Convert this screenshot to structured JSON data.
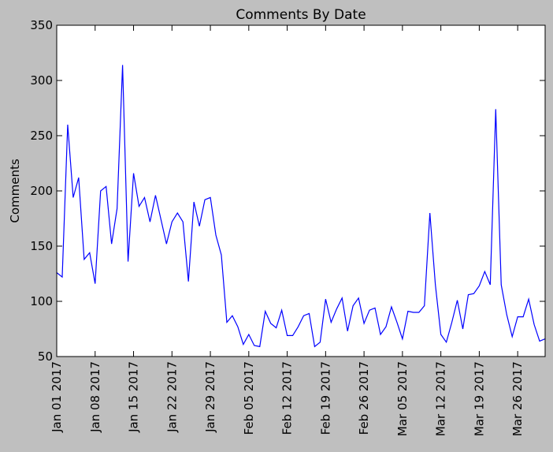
{
  "chart_data": {
    "type": "line",
    "title": "Comments By Date",
    "y_label": "Comments",
    "x": [
      "2017-01-01",
      "2017-01-02",
      "2017-01-03",
      "2017-01-04",
      "2017-01-05",
      "2017-01-06",
      "2017-01-07",
      "2017-01-08",
      "2017-01-09",
      "2017-01-10",
      "2017-01-11",
      "2017-01-12",
      "2017-01-13",
      "2017-01-14",
      "2017-01-15",
      "2017-01-16",
      "2017-01-17",
      "2017-01-18",
      "2017-01-19",
      "2017-01-20",
      "2017-01-21",
      "2017-01-22",
      "2017-01-23",
      "2017-01-24",
      "2017-01-25",
      "2017-01-26",
      "2017-01-27",
      "2017-01-28",
      "2017-01-29",
      "2017-01-30",
      "2017-01-31",
      "2017-02-01",
      "2017-02-02",
      "2017-02-03",
      "2017-02-04",
      "2017-02-05",
      "2017-02-06",
      "2017-02-07",
      "2017-02-08",
      "2017-02-09",
      "2017-02-10",
      "2017-02-11",
      "2017-02-12",
      "2017-02-13",
      "2017-02-14",
      "2017-02-15",
      "2017-02-16",
      "2017-02-17",
      "2017-02-18",
      "2017-02-19",
      "2017-02-20",
      "2017-02-21",
      "2017-02-22",
      "2017-02-23",
      "2017-02-24",
      "2017-02-25",
      "2017-02-26",
      "2017-02-27",
      "2017-02-28",
      "2017-03-01",
      "2017-03-02",
      "2017-03-03",
      "2017-03-04",
      "2017-03-05",
      "2017-03-06",
      "2017-03-07",
      "2017-03-08",
      "2017-03-09",
      "2017-03-10",
      "2017-03-11",
      "2017-03-12",
      "2017-03-13",
      "2017-03-14",
      "2017-03-15",
      "2017-03-16",
      "2017-03-17",
      "2017-03-18",
      "2017-03-19",
      "2017-03-20",
      "2017-03-21",
      "2017-03-22",
      "2017-03-23",
      "2017-03-24",
      "2017-03-25",
      "2017-03-26",
      "2017-03-27",
      "2017-03-28",
      "2017-03-29",
      "2017-03-30",
      "2017-03-31"
    ],
    "series": [
      {
        "color": "#0000ff",
        "values": [
          126,
          122,
          260,
          194,
          212,
          138,
          144,
          116,
          200,
          204,
          152,
          184,
          314,
          136,
          216,
          186,
          194,
          172,
          196,
          174,
          152,
          172,
          180,
          172,
          118,
          190,
          168,
          192,
          194,
          160,
          142,
          81,
          87,
          77,
          61,
          70,
          60,
          59,
          91,
          80,
          76,
          92,
          69,
          69,
          77,
          87,
          89,
          59,
          63,
          102,
          81,
          93,
          103,
          73,
          96,
          103,
          80,
          92,
          94,
          70,
          77,
          95,
          81,
          66,
          91,
          90,
          90,
          96,
          180,
          115,
          70,
          63,
          81,
          101,
          75,
          106,
          107,
          114,
          127,
          115,
          274,
          115,
          88,
          68,
          86,
          86,
          102,
          79,
          64,
          66
        ]
      }
    ],
    "xlim": [
      "2017-01-01",
      "2017-03-31"
    ],
    "xticks": [
      {
        "value": "2017-01-01",
        "label": "Jan 01 2017"
      },
      {
        "value": "2017-01-08",
        "label": "Jan 08 2017"
      },
      {
        "value": "2017-01-15",
        "label": "Jan 15 2017"
      },
      {
        "value": "2017-01-22",
        "label": "Jan 22 2017"
      },
      {
        "value": "2017-01-29",
        "label": "Jan 29 2017"
      },
      {
        "value": "2017-02-05",
        "label": "Feb 05 2017"
      },
      {
        "value": "2017-02-12",
        "label": "Feb 12 2017"
      },
      {
        "value": "2017-02-19",
        "label": "Feb 19 2017"
      },
      {
        "value": "2017-02-26",
        "label": "Feb 26 2017"
      },
      {
        "value": "2017-03-05",
        "label": "Mar 05 2017"
      },
      {
        "value": "2017-03-12",
        "label": "Mar 12 2017"
      },
      {
        "value": "2017-03-19",
        "label": "Mar 19 2017"
      },
      {
        "value": "2017-03-26",
        "label": "Mar 26 2017"
      }
    ],
    "ylim": [
      50,
      350
    ],
    "yticks": [
      50,
      100,
      150,
      200,
      250,
      300,
      350
    ]
  }
}
